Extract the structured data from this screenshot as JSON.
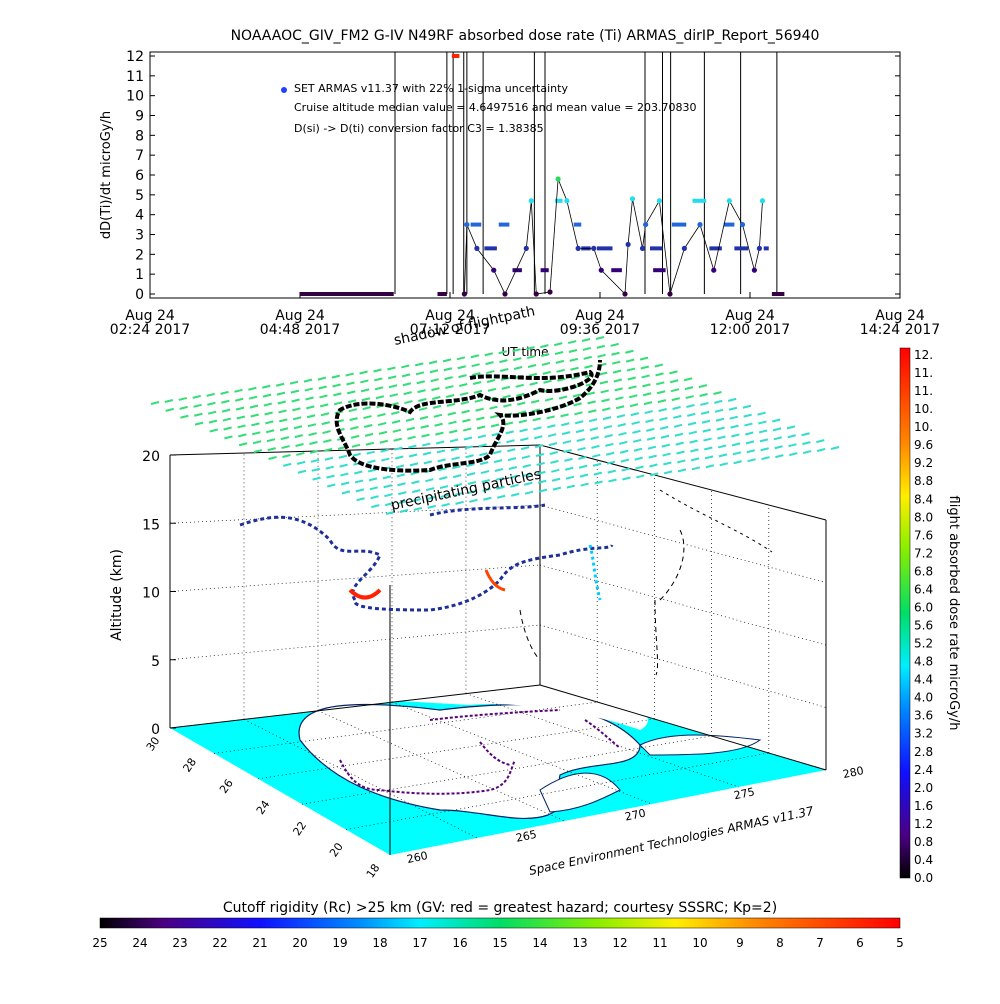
{
  "title": "NOAAAOC_GIV_FM2 G-IV    N49RF  absorbed dose rate (Ti) ARMAS_dirIP_Report_56940",
  "top_chart": {
    "ylabel": "dD(Ti)/dt microGy/h",
    "xlabel": "UT time",
    "yticks": [
      "0",
      "1",
      "2",
      "3",
      "4",
      "5",
      "6",
      "7",
      "8",
      "9",
      "10",
      "11",
      "12"
    ],
    "xticks": [
      {
        "line1": "Aug 24",
        "line2": "02:24 2017"
      },
      {
        "line1": "Aug 24",
        "line2": "04:48 2017"
      },
      {
        "line1": "Aug 24",
        "line2": "07:12 2017"
      },
      {
        "line1": "Aug 24",
        "line2": "09:36 2017"
      },
      {
        "line1": "Aug 24",
        "line2": "12:00 2017"
      },
      {
        "line1": "Aug 24",
        "line2": "14:24 2017"
      }
    ],
    "legend": {
      "line1": "SET ARMAS v11.37 with 22% 1-sigma uncertainty",
      "line2": "Cruise altitude median value = 4.6497516 and mean value = 203.70830",
      "line3": "D(si) -> D(ti) conversion factor C3 = 1.38385"
    }
  },
  "chart_data": [
    {
      "type": "line",
      "title": "NOAAAOC_GIV_FM2 G-IV    N49RF  absorbed dose rate (Ti) ARMAS_dirIP_Report_56940",
      "xlabel": "UT time",
      "ylabel": "dD(Ti)/dt microGy/h",
      "xlim": [
        "2017-08-24 02:24",
        "2017-08-24 14:24"
      ],
      "ylim": [
        0,
        12
      ],
      "x_unit": "hours UT, 2017-08-24",
      "segments": [
        {
          "x": [
            4.8,
            6.3
          ],
          "y": [
            0,
            0
          ]
        },
        {
          "x": [
            7.0,
            7.15
          ],
          "y": [
            0,
            0
          ]
        },
        {
          "x": [
            7.23,
            7.35
          ],
          "y": [
            12,
            12
          ]
        },
        {
          "x": [
            7.53,
            7.7
          ],
          "y": [
            3.5,
            3.5
          ]
        },
        {
          "x": [
            7.75,
            7.95
          ],
          "y": [
            2.3,
            2.3
          ]
        },
        {
          "x": [
            7.98,
            8.15
          ],
          "y": [
            3.5,
            3.5
          ]
        },
        {
          "x": [
            8.2,
            8.35
          ],
          "y": [
            1.2,
            1.2
          ]
        },
        {
          "x": [
            8.65,
            8.78
          ],
          "y": [
            1.2,
            1.2
          ]
        },
        {
          "x": [
            8.88,
            9.0
          ],
          "y": [
            4.7,
            4.7
          ]
        },
        {
          "x": [
            9.18,
            9.3
          ],
          "y": [
            3.5,
            3.5
          ]
        },
        {
          "x": [
            9.3,
            9.45
          ],
          "y": [
            2.3,
            2.3
          ]
        },
        {
          "x": [
            9.55,
            9.8
          ],
          "y": [
            2.3,
            2.3
          ]
        },
        {
          "x": [
            9.78,
            9.95
          ],
          "y": [
            1.2,
            1.2
          ]
        },
        {
          "x": [
            10.45,
            10.65
          ],
          "y": [
            1.2,
            1.2
          ]
        },
        {
          "x": [
            10.4,
            10.6
          ],
          "y": [
            2.3,
            2.3
          ]
        },
        {
          "x": [
            10.75,
            10.98
          ],
          "y": [
            3.5,
            3.5
          ]
        },
        {
          "x": [
            11.08,
            11.3
          ],
          "y": [
            4.7,
            4.7
          ]
        },
        {
          "x": [
            11.35,
            11.55
          ],
          "y": [
            2.3,
            2.3
          ]
        },
        {
          "x": [
            11.58,
            11.75
          ],
          "y": [
            3.5,
            3.5
          ]
        },
        {
          "x": [
            11.75,
            11.97
          ],
          "y": [
            2.3,
            2.3
          ]
        },
        {
          "x": [
            12.22,
            12.3
          ],
          "y": [
            2.3,
            2.3
          ]
        },
        {
          "x": [
            12.35,
            12.55
          ],
          "y": [
            0,
            0
          ]
        }
      ],
      "points": [
        {
          "x": 7.43,
          "y": 0
        },
        {
          "x": 7.47,
          "y": 3.5
        },
        {
          "x": 7.63,
          "y": 2.3
        },
        {
          "x": 7.9,
          "y": 1.2
        },
        {
          "x": 8.08,
          "y": 0
        },
        {
          "x": 8.42,
          "y": 2.3
        },
        {
          "x": 8.5,
          "y": 4.7
        },
        {
          "x": 8.58,
          "y": 0
        },
        {
          "x": 8.8,
          "y": 0.1
        },
        {
          "x": 8.93,
          "y": 5.8
        },
        {
          "x": 9.07,
          "y": 4.7
        },
        {
          "x": 9.25,
          "y": 2.3
        },
        {
          "x": 9.5,
          "y": 2.3
        },
        {
          "x": 9.62,
          "y": 1.2
        },
        {
          "x": 10.0,
          "y": 0
        },
        {
          "x": 10.05,
          "y": 2.5
        },
        {
          "x": 10.12,
          "y": 4.8
        },
        {
          "x": 10.28,
          "y": 2.3
        },
        {
          "x": 10.33,
          "y": 3.5
        },
        {
          "x": 10.55,
          "y": 4.7
        },
        {
          "x": 10.72,
          "y": 0
        },
        {
          "x": 10.95,
          "y": 2.3
        },
        {
          "x": 11.2,
          "y": 3.5
        },
        {
          "x": 11.42,
          "y": 1.2
        },
        {
          "x": 11.67,
          "y": 4.7
        },
        {
          "x": 11.88,
          "y": 3.5
        },
        {
          "x": 12.07,
          "y": 1.2
        },
        {
          "x": 12.15,
          "y": 2.3
        },
        {
          "x": 12.2,
          "y": 4.7
        }
      ],
      "spikes_x": [
        6.32,
        7.15,
        7.25,
        7.42,
        7.47,
        7.73,
        8.55,
        8.72,
        10.32,
        10.6,
        10.73,
        11.27,
        11.85,
        12.43
      ]
    },
    {
      "type": "scatter",
      "description_type": "3d-trajectory",
      "zlabel": "Altitude (km)",
      "zticks": [
        0,
        5,
        10,
        15,
        20
      ],
      "lat_ticks": [
        30,
        28,
        26,
        24,
        22,
        20,
        18
      ],
      "lon_ticks": [
        260,
        265,
        270,
        275,
        280
      ],
      "annotations": [
        "shadow of flightpath",
        "precipitating particles"
      ],
      "footer": "Space Environment Technologies ARMAS v11.37"
    }
  ],
  "right_colorbar": {
    "label": "flight absorbed dose rate microGy/h",
    "ticks": [
      "12.",
      "11.",
      "11.",
      "10.",
      "10.",
      "9.6",
      "9.2",
      "8.8",
      "8.4",
      "8.0",
      "7.6",
      "7.2",
      "6.8",
      "6.4",
      "6.0",
      "5.6",
      "5.2",
      "4.8",
      "4.4",
      "4.0",
      "3.6",
      "3.2",
      "2.8",
      "2.4",
      "2.0",
      "1.6",
      "1.2",
      "0.8",
      "0.4",
      "0.0"
    ]
  },
  "bottom_colorbar": {
    "label": "Cutoff rigidity (Rc) >25 km (GV: red = greatest hazard; courtesy SSSRC; Kp=2)",
    "ticks": [
      "25",
      "24",
      "23",
      "22",
      "21",
      "20",
      "19",
      "18",
      "17",
      "16",
      "15",
      "14",
      "13",
      "12",
      "11",
      "10",
      "9",
      "8",
      "7",
      "6",
      "5"
    ]
  },
  "colors": {
    "sea": "#00ffff",
    "shadow_grid": "#22dd88",
    "legend_dot": "#1e40ff"
  }
}
